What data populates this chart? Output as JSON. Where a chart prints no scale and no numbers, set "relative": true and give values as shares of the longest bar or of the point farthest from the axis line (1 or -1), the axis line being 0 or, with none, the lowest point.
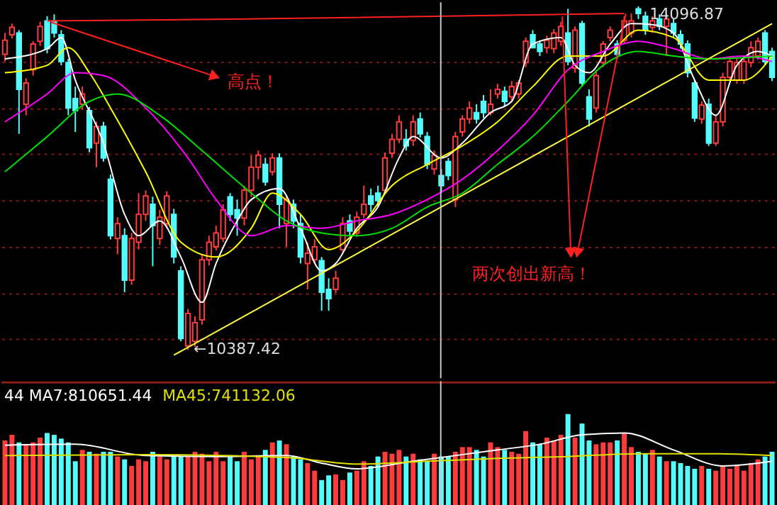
{
  "chart_data": [
    {
      "type": "candlestick",
      "tick_labels": false,
      "grid": "y",
      "ylim": [
        10080,
        14140
      ],
      "yticks": [
        {
          "value": 13500,
          "label": null
        },
        {
          "value": 13000,
          "label": null
        },
        {
          "value": 12500,
          "label": null
        },
        {
          "value": 12000,
          "label": null
        },
        {
          "value": 11500,
          "label": null
        },
        {
          "value": 11000,
          "label": null
        },
        {
          "value": 10500,
          "label": null
        }
      ],
      "colors": [
        "#ff3c3c",
        "#ff3c3c",
        "#54fcfc",
        "#ff3c3c",
        "#ff3c3c",
        "#ff3c3c",
        "#54fcfc",
        "#54fcfc",
        "#54fcfc",
        "#54fcfc",
        "#54fcfc",
        "#ff3c3c",
        "#54fcfc",
        "#ff3c3c",
        "#54fcfc",
        "#54fcfc",
        "#ff3c3c",
        "#54fcfc",
        "#ff3c3c",
        "#ff3c3c",
        "#ff3c3c",
        "#54fcfc",
        "#ff3c3c",
        "#ff3c3c",
        "#54fcfc",
        "#54fcfc",
        "#ff3c3c",
        "#ff3c3c",
        "#ff3c3c",
        "#ff3c3c",
        "#ff3c3c",
        "#ff3c3c",
        "#54fcfc",
        "#54fcfc",
        "#ff3c3c",
        "#ff3c3c",
        "#ff3c3c",
        "#54fcfc",
        "#ff3c3c",
        "#54fcfc",
        "#ff3c3c",
        "#54fcfc",
        "#54fcfc",
        "#ff3c3c",
        "#ff3c3c",
        "#54fcfc",
        "#54fcfc",
        "#ff3c3c",
        "#ff3c3c",
        "#54fcfc",
        "#ff3c3c",
        "#ff3c3c",
        "#54fcfc",
        "#54fcfc",
        "#ff3c3c",
        "#ff3c3c",
        "#ff3c3c",
        "#54fcfc",
        "#ff3c3c",
        "#54fcfc",
        "#54fcfc",
        "#ff3c3c",
        "#54fcfc",
        "#54fcfc",
        "#ff3c3c",
        "#ff3c3c",
        "#ff3c3c",
        "#54fcfc",
        "#54fcfc",
        "#ff3c3c",
        "#ff3c3c",
        "#54fcfc",
        "#ff3c3c",
        "#ff3c3c",
        "#ff3c3c",
        "#54fcfc",
        "#54fcfc",
        "#ff3c3c",
        "#ff3c3c",
        "#ff3c3c",
        "#54fcfc",
        "#ff3c3c",
        "#54fcfc",
        "#54fcfc",
        "#ff3c3c",
        "#ff3c3c",
        "#ff3c3c",
        "#54fcfc",
        "#ff3c3c",
        "#ff3c3c",
        "#54fcfc",
        "#54fcfc",
        "#ff3c3c",
        "#54fcfc",
        "#ff3c3c",
        "#54fcfc",
        "#54fcfc",
        "#54fcfc",
        "#54fcfc",
        "#ff3c3c",
        "#54fcfc",
        "#ff3c3c",
        "#ff3c3c",
        "#ff3c3c",
        "#ff3c3c",
        "#ff3c3c",
        "#ff3c3c",
        "#ff3c3c",
        "#54fcfc",
        "#54fcfc"
      ],
      "categories": [
        null,
        null,
        null,
        null,
        null,
        null,
        null,
        null,
        null,
        null,
        null,
        null,
        null,
        null,
        null,
        null,
        null,
        null,
        null,
        null,
        null,
        null,
        null,
        null,
        null,
        null,
        null,
        null,
        null,
        null,
        null,
        null,
        null,
        null,
        null,
        null,
        null,
        null,
        null,
        null,
        null,
        null,
        null,
        null,
        null,
        null,
        null,
        null,
        null,
        null,
        null,
        null,
        null,
        null,
        null,
        null,
        null,
        null,
        null,
        null,
        null,
        null,
        null,
        null,
        null,
        null,
        null,
        null,
        null,
        null,
        null,
        null,
        null,
        null,
        null,
        null,
        null,
        null,
        null,
        null,
        null,
        null,
        null,
        null,
        null,
        null,
        null,
        null,
        null,
        null,
        null,
        null,
        null,
        null,
        null,
        null,
        null,
        null,
        null,
        null,
        null,
        null,
        null,
        null,
        null,
        null,
        null,
        null,
        null,
        null
      ],
      "ohlc": [
        [
          13580,
          13810,
          13500,
          13730
        ],
        [
          13790,
          13910,
          13750,
          13870
        ],
        [
          13810,
          13840,
          12720,
          13200
        ],
        [
          13040,
          13320,
          12920,
          13270
        ],
        [
          13410,
          13720,
          13350,
          13690
        ],
        [
          13720,
          13930,
          13670,
          13880
        ],
        [
          13940,
          13990,
          13590,
          13640
        ],
        [
          13940,
          14010,
          13760,
          13810
        ],
        [
          13790,
          13840,
          13460,
          13500
        ],
        [
          13490,
          13530,
          12920,
          13000
        ],
        [
          13100,
          13230,
          12740,
          12970
        ],
        [
          13040,
          13230,
          12980,
          13150
        ],
        [
          12970,
          13010,
          12520,
          12570
        ],
        [
          12620,
          12850,
          12360,
          12800
        ],
        [
          12800,
          12850,
          12420,
          12460
        ],
        [
          12230,
          12280,
          11580,
          11620
        ],
        [
          11590,
          11820,
          11420,
          11750
        ],
        [
          11620,
          11700,
          11010,
          11140
        ],
        [
          11140,
          11650,
          11090,
          11590
        ],
        [
          11550,
          12080,
          11470,
          11850
        ],
        [
          11850,
          12110,
          11780,
          12050
        ],
        [
          11960,
          12040,
          11290,
          11730
        ],
        [
          11590,
          11900,
          11520,
          11820
        ],
        [
          11750,
          12100,
          11700,
          12050
        ],
        [
          11850,
          11910,
          11320,
          11390
        ],
        [
          11240,
          11290,
          10480,
          10510
        ],
        [
          10430,
          10830,
          10387.42,
          10780
        ],
        [
          10480,
          10750,
          10420,
          10680
        ],
        [
          10710,
          11420,
          10660,
          11360
        ],
        [
          11360,
          11620,
          11300,
          11550
        ],
        [
          11500,
          11730,
          11460,
          11650
        ],
        [
          11590,
          11960,
          11550,
          11900
        ],
        [
          12040,
          12080,
          11780,
          11850
        ],
        [
          11900,
          12010,
          11620,
          11810
        ],
        [
          11810,
          12160,
          11730,
          12110
        ],
        [
          12110,
          12490,
          12040,
          12360
        ],
        [
          12360,
          12540,
          12230,
          12490
        ],
        [
          12390,
          12460,
          12160,
          12200
        ],
        [
          12310,
          12510,
          12270,
          12460
        ],
        [
          12460,
          12510,
          11700,
          11960
        ],
        [
          11750,
          12050,
          11500,
          12010
        ],
        [
          11960,
          12010,
          11700,
          11780
        ],
        [
          11750,
          11850,
          11320,
          11390
        ],
        [
          11320,
          11550,
          11040,
          11430
        ],
        [
          11360,
          11580,
          11320,
          11500
        ],
        [
          11350,
          11390,
          10810,
          11010
        ],
        [
          11040,
          11160,
          10810,
          10940
        ],
        [
          11040,
          11240,
          11000,
          11160
        ],
        [
          11470,
          11820,
          11420,
          11750
        ],
        [
          11780,
          11850,
          11620,
          11670
        ],
        [
          11650,
          11880,
          11610,
          11820
        ],
        [
          11850,
          12160,
          11810,
          11960
        ],
        [
          12050,
          12130,
          11880,
          11960
        ],
        [
          12080,
          12160,
          11930,
          12000
        ],
        [
          12110,
          12520,
          12070,
          12460
        ],
        [
          12510,
          12720,
          12460,
          12660
        ],
        [
          12660,
          12920,
          12620,
          12850
        ],
        [
          12660,
          12770,
          12540,
          12590
        ],
        [
          12650,
          12920,
          12590,
          12850
        ],
        [
          12880,
          12950,
          12680,
          12720
        ],
        [
          12690,
          12740,
          12340,
          12390
        ],
        [
          12340,
          12540,
          12280,
          12490
        ],
        [
          12270,
          12340,
          12080,
          12160
        ],
        [
          12420,
          12460,
          12220,
          12270
        ],
        [
          12010,
          12740,
          11930,
          12690
        ],
        [
          12740,
          12920,
          12690,
          12880
        ],
        [
          12880,
          13070,
          12830,
          13000
        ],
        [
          12950,
          13040,
          12830,
          12880
        ],
        [
          13070,
          13140,
          12890,
          12950
        ],
        [
          12950,
          13200,
          12920,
          13040
        ],
        [
          13150,
          13260,
          13100,
          13200
        ],
        [
          13180,
          13230,
          13010,
          13070
        ],
        [
          13120,
          13290,
          13070,
          13230
        ],
        [
          13150,
          13300,
          13100,
          13270
        ],
        [
          13490,
          13760,
          13440,
          13720
        ],
        [
          13790,
          13840,
          13650,
          13650
        ],
        [
          13690,
          13730,
          13560,
          13610
        ],
        [
          13650,
          13780,
          13590,
          13730
        ],
        [
          13640,
          13850,
          13590,
          13810
        ],
        [
          13720,
          13930,
          13670,
          13880
        ],
        [
          13810,
          14070,
          13460,
          13500
        ],
        [
          13430,
          13880,
          13380,
          13840
        ],
        [
          13910,
          13940,
          13230,
          13270
        ],
        [
          13120,
          13200,
          12800,
          12880
        ],
        [
          13000,
          13410,
          12950,
          13350
        ],
        [
          13490,
          13720,
          13440,
          13690
        ],
        [
          13760,
          13880,
          13720,
          13840
        ],
        [
          13690,
          13730,
          13530,
          13580
        ],
        [
          13730,
          13990,
          13690,
          13940
        ],
        [
          13810,
          14020,
          13760,
          13940
        ],
        [
          14070,
          14096.87,
          13960,
          14020
        ],
        [
          13990,
          14040,
          13790,
          13840
        ],
        [
          13870,
          13990,
          13810,
          13940
        ],
        [
          13960,
          14010,
          13840,
          13880
        ],
        [
          13880,
          14010,
          13560,
          13960
        ],
        [
          13910,
          13960,
          13760,
          13810
        ],
        [
          13790,
          13840,
          13640,
          13690
        ],
        [
          13690,
          13730,
          13330,
          13380
        ],
        [
          13270,
          13300,
          12850,
          12890
        ],
        [
          12880,
          13070,
          12830,
          13030
        ],
        [
          13040,
          13100,
          12590,
          12620
        ],
        [
          12620,
          12920,
          12590,
          12850
        ],
        [
          12850,
          13380,
          12800,
          13330
        ],
        [
          13330,
          13560,
          13290,
          13500
        ],
        [
          13300,
          13530,
          13260,
          13490
        ],
        [
          13300,
          13560,
          13260,
          13500
        ],
        [
          13490,
          13720,
          13440,
          13650
        ],
        [
          13560,
          13760,
          13520,
          13720
        ],
        [
          13810,
          13840,
          13460,
          13500
        ],
        [
          13610,
          13650,
          13290,
          13330
        ]
      ],
      "series": [
        {
          "type": "line",
          "color": "#ffffff",
          "values": [
            13530,
            null,
            null,
            null,
            null,
            null,
            13640,
            null,
            13760,
            null,
            13300,
            null,
            null,
            null,
            12620,
            null,
            null,
            11850,
            null,
            11620,
            null,
            null,
            11780,
            null,
            null,
            11390,
            null,
            null,
            10900,
            null,
            11320,
            null,
            null,
            11780,
            null,
            12010,
            null,
            null,
            null,
            12130,
            null,
            null,
            11700,
            null,
            null,
            11240,
            null,
            11320,
            null,
            null,
            11700,
            null,
            null,
            11930,
            null,
            null,
            12460,
            null,
            12690,
            null,
            null,
            null,
            12460,
            null,
            null,
            12620,
            null,
            null,
            null,
            12950,
            null,
            null,
            13070,
            null,
            null,
            13690,
            null,
            null,
            null,
            13760,
            null,
            13460,
            null,
            13380,
            null,
            null,
            13690,
            null,
            null,
            13910,
            null,
            null,
            13900,
            null,
            null,
            13810,
            null,
            null,
            13300,
            null,
            null,
            12920,
            null,
            null,
            13460,
            null,
            null,
            13610,
            null,
            13560
          ]
        },
        {
          "type": "line",
          "color": "#ffff00",
          "values": [
            13380,
            null,
            null,
            null,
            null,
            null,
            13460,
            null,
            null,
            13650,
            null,
            null,
            13380,
            null,
            null,
            13000,
            null,
            null,
            null,
            null,
            12310,
            null,
            null,
            null,
            null,
            11550,
            null,
            null,
            null,
            null,
            11390,
            null,
            null,
            null,
            null,
            11700,
            null,
            null,
            12080,
            null,
            null,
            null,
            11850,
            null,
            null,
            null,
            11470,
            null,
            null,
            null,
            11670,
            null,
            null,
            null,
            null,
            12160,
            null,
            null,
            null,
            null,
            12390,
            null,
            null,
            null,
            null,
            12590,
            null,
            null,
            null,
            null,
            12850,
            null,
            null,
            null,
            null,
            13230,
            null,
            null,
            null,
            null,
            13560,
            null,
            null,
            null,
            null,
            13560,
            null,
            null,
            null,
            null,
            13840,
            null,
            null,
            null,
            null,
            13760,
            null,
            null,
            null,
            null,
            13300,
            null,
            null,
            null,
            null,
            13300,
            null,
            null,
            null,
            13560
          ]
        },
        {
          "type": "line",
          "color": "#ff00ff",
          "values": [
            12850,
            null,
            null,
            null,
            null,
            null,
            13150,
            null,
            null,
            null,
            13380,
            null,
            null,
            null,
            13350,
            null,
            null,
            null,
            null,
            null,
            13000,
            null,
            null,
            null,
            null,
            null,
            12460,
            null,
            null,
            null,
            12010,
            null,
            null,
            null,
            null,
            11620,
            null,
            null,
            null,
            null,
            11730,
            null,
            null,
            null,
            null,
            11700,
            null,
            null,
            null,
            null,
            11780,
            null,
            null,
            null,
            null,
            11850,
            null,
            null,
            null,
            null,
            12010,
            null,
            null,
            null,
            null,
            12230,
            null,
            null,
            null,
            null,
            12540,
            null,
            null,
            null,
            null,
            12920,
            null,
            null,
            null,
            null,
            13410,
            null,
            null,
            null,
            null,
            13610,
            null,
            null,
            null,
            null,
            13720,
            null,
            null,
            null,
            null,
            13640,
            null,
            null,
            null,
            null,
            13530,
            null,
            null,
            null,
            null,
            13560,
            null,
            null,
            null,
            13500
          ]
        },
        {
          "type": "line",
          "color": "#00e000",
          "values": [
            12310,
            null,
            null,
            null,
            null,
            null,
            12690,
            null,
            null,
            null,
            null,
            null,
            13070,
            null,
            null,
            null,
            13150,
            null,
            null,
            null,
            null,
            null,
            12920,
            null,
            null,
            null,
            null,
            null,
            12540,
            null,
            null,
            null,
            null,
            null,
            null,
            12080,
            null,
            null,
            null,
            null,
            11780,
            null,
            null,
            null,
            null,
            11650,
            null,
            null,
            null,
            null,
            11620,
            null,
            null,
            null,
            null,
            11700,
            null,
            null,
            null,
            null,
            11930,
            null,
            null,
            null,
            null,
            12080,
            null,
            null,
            null,
            null,
            12390,
            null,
            null,
            null,
            null,
            12690,
            null,
            null,
            null,
            null,
            13070,
            null,
            null,
            null,
            null,
            13460,
            null,
            null,
            null,
            null,
            13610,
            null,
            null,
            null,
            null,
            13560,
            null,
            null,
            null,
            null,
            13530,
            null,
            null,
            null,
            null,
            null,
            null,
            null,
            null,
            13560
          ]
        },
        {
          "type": "line",
          "color": "#ff2020",
          "values": [
            null,
            null,
            null,
            null,
            null,
            null,
            13940,
            null,
            null,
            null,
            null,
            null,
            null,
            null,
            null,
            null,
            null,
            null,
            null,
            null,
            null,
            null,
            null,
            null,
            null,
            null,
            null,
            null,
            null,
            null,
            null,
            null,
            null,
            null,
            13960,
            null,
            null,
            null,
            null,
            null,
            null,
            null,
            null,
            null,
            null,
            null,
            null,
            null,
            null,
            null,
            null,
            null,
            null,
            null,
            null,
            null,
            null,
            null,
            null,
            null,
            null,
            null,
            null,
            null,
            null,
            null,
            null,
            null,
            null,
            null,
            null,
            null,
            null,
            null,
            null,
            null,
            null,
            null,
            null,
            null,
            null,
            null,
            null,
            null,
            null,
            null,
            null,
            null,
            14020,
            null,
            null,
            null,
            null,
            null,
            null,
            null,
            null,
            null,
            null,
            null,
            null,
            null,
            null,
            null,
            null,
            null,
            null,
            null,
            null,
            null
          ]
        },
        {
          "type": "line",
          "color": "#ffff40",
          "values": [
            null,
            null,
            null,
            null,
            null,
            null,
            null,
            null,
            null,
            null,
            null,
            null,
            null,
            null,
            null,
            null,
            null,
            null,
            null,
            null,
            null,
            null,
            null,
            null,
            10330,
            null,
            null,
            null,
            null,
            null,
            null,
            null,
            null,
            null,
            null,
            null,
            null,
            null,
            null,
            null,
            null,
            null,
            null,
            null,
            null,
            null,
            null,
            null,
            null,
            null,
            null,
            null,
            null,
            null,
            null,
            null,
            null,
            null,
            null,
            null,
            null,
            null,
            null,
            null,
            null,
            null,
            null,
            null,
            null,
            null,
            null,
            null,
            null,
            null,
            null,
            null,
            null,
            null,
            null,
            null,
            null,
            null,
            null,
            null,
            null,
            null,
            null,
            null,
            null,
            null,
            null,
            null,
            null,
            null,
            null,
            null,
            null,
            null,
            null,
            null,
            null,
            null,
            null,
            null,
            null,
            null,
            null,
            null,
            null,
            13910
          ]
        }
      ],
      "annotations": [
        "高点！",
        "两次创出新高！",
        "←10387.42",
        "14096.87"
      ]
    },
    {
      "type": "bar",
      "relative": true,
      "tick_labels": false,
      "categories": [
        null,
        null,
        null,
        null,
        null,
        null,
        null,
        null,
        null,
        null,
        null,
        null,
        null,
        null,
        null,
        null,
        null,
        null,
        null,
        null,
        null,
        null,
        null,
        null,
        null,
        null,
        null,
        null,
        null,
        null,
        null,
        null,
        null,
        null,
        null,
        null,
        null,
        null,
        null,
        null,
        null,
        null,
        null,
        null,
        null,
        null,
        null,
        null,
        null,
        null,
        null,
        null,
        null,
        null,
        null,
        null,
        null,
        null,
        null,
        null,
        null,
        null,
        null,
        null,
        null,
        null,
        null,
        null,
        null,
        null,
        null,
        null,
        null,
        null,
        null,
        null,
        null,
        null,
        null,
        null,
        null,
        null,
        null,
        null,
        null,
        null,
        null,
        null,
        null,
        null,
        null,
        null,
        null,
        null,
        null,
        null,
        null,
        null,
        null,
        null,
        null,
        null,
        null,
        null,
        null,
        null,
        null,
        null,
        null,
        null
      ],
      "series": [
        {
          "type": "bar",
          "values": [
            0.72,
            0.78,
            0.7,
            0.68,
            0.7,
            0.75,
            0.8,
            0.78,
            0.74,
            0.7,
            0.5,
            0.62,
            0.6,
            0.58,
            0.6,
            0.6,
            0.55,
            0.52,
            0.45,
            0.52,
            0.5,
            0.6,
            0.55,
            0.52,
            0.55,
            0.55,
            0.55,
            0.6,
            0.58,
            0.5,
            0.6,
            0.5,
            0.55,
            0.5,
            0.6,
            0.52,
            0.55,
            0.62,
            0.7,
            0.72,
            0.68,
            0.55,
            0.52,
            0.48,
            0.4,
            0.3,
            0.35,
            0.36,
            0.3,
            0.38,
            0.4,
            0.5,
            0.45,
            0.55,
            0.6,
            0.58,
            0.62,
            0.55,
            0.58,
            0.52,
            0.5,
            0.58,
            0.55,
            0.55,
            0.6,
            0.65,
            0.65,
            0.62,
            0.55,
            0.7,
            0.65,
            0.62,
            0.6,
            0.58,
            0.82,
            0.7,
            0.68,
            0.75,
            0.72,
            0.78,
            1,
            0.75,
            0.9,
            0.72,
            0.68,
            0.7,
            0.7,
            0.72,
            0.8,
            0.65,
            0.6,
            0.58,
            0.62,
            0.55,
            0.5,
            0.5,
            0.48,
            0.45,
            0.42,
            0.45,
            0.42,
            0.4,
            0.45,
            0.42,
            0.45,
            0.4,
            0.48,
            0.52,
            0.55,
            0.6
          ],
          "colors": [
            "#ff3c3c",
            "#ff3c3c",
            "#54fcfc",
            "#ff3c3c",
            "#ff3c3c",
            "#ff3c3c",
            "#54fcfc",
            "#54fcfc",
            "#54fcfc",
            "#54fcfc",
            "#54fcfc",
            "#ff3c3c",
            "#54fcfc",
            "#ff3c3c",
            "#54fcfc",
            "#54fcfc",
            "#ff3c3c",
            "#54fcfc",
            "#ff3c3c",
            "#ff3c3c",
            "#ff3c3c",
            "#54fcfc",
            "#ff3c3c",
            "#ff3c3c",
            "#54fcfc",
            "#54fcfc",
            "#ff3c3c",
            "#ff3c3c",
            "#ff3c3c",
            "#ff3c3c",
            "#ff3c3c",
            "#ff3c3c",
            "#54fcfc",
            "#54fcfc",
            "#ff3c3c",
            "#ff3c3c",
            "#ff3c3c",
            "#54fcfc",
            "#ff3c3c",
            "#54fcfc",
            "#ff3c3c",
            "#54fcfc",
            "#54fcfc",
            "#ff3c3c",
            "#ff3c3c",
            "#54fcfc",
            "#54fcfc",
            "#ff3c3c",
            "#ff3c3c",
            "#54fcfc",
            "#ff3c3c",
            "#ff3c3c",
            "#54fcfc",
            "#54fcfc",
            "#ff3c3c",
            "#ff3c3c",
            "#ff3c3c",
            "#54fcfc",
            "#ff3c3c",
            "#54fcfc",
            "#54fcfc",
            "#ff3c3c",
            "#54fcfc",
            "#54fcfc",
            "#ff3c3c",
            "#ff3c3c",
            "#ff3c3c",
            "#54fcfc",
            "#54fcfc",
            "#ff3c3c",
            "#ff3c3c",
            "#54fcfc",
            "#ff3c3c",
            "#ff3c3c",
            "#ff3c3c",
            "#54fcfc",
            "#54fcfc",
            "#ff3c3c",
            "#ff3c3c",
            "#ff3c3c",
            "#54fcfc",
            "#ff3c3c",
            "#54fcfc",
            "#54fcfc",
            "#ff3c3c",
            "#ff3c3c",
            "#ff3c3c",
            "#54fcfc",
            "#ff3c3c",
            "#ff3c3c",
            "#54fcfc",
            "#54fcfc",
            "#ff3c3c",
            "#54fcfc",
            "#ff3c3c",
            "#54fcfc",
            "#54fcfc",
            "#54fcfc",
            "#54fcfc",
            "#ff3c3c",
            "#54fcfc",
            "#ff3c3c",
            "#ff3c3c",
            "#ff3c3c",
            "#ff3c3c",
            "#ff3c3c",
            "#ff3c3c",
            "#ff3c3c",
            "#54fcfc",
            "#54fcfc"
          ]
        },
        {
          "type": "line",
          "color": "#ffffff",
          "values": [
            0.67,
            null,
            null,
            null,
            null,
            null,
            null,
            null,
            null,
            null,
            0.68,
            null,
            null,
            null,
            null,
            null,
            null,
            null,
            null,
            null,
            0.56,
            null,
            null,
            null,
            null,
            null,
            null,
            null,
            null,
            null,
            0.55,
            null,
            null,
            null,
            null,
            null,
            null,
            null,
            null,
            null,
            0.56,
            null,
            null,
            null,
            null,
            0.48,
            null,
            null,
            null,
            null,
            0.42,
            null,
            null,
            null,
            null,
            null,
            null,
            null,
            0.5,
            null,
            null,
            null,
            null,
            0.55,
            null,
            null,
            null,
            null,
            null,
            null,
            0.62,
            null,
            null,
            null,
            null,
            null,
            0.68,
            null,
            null,
            null,
            null,
            null,
            0.78,
            null,
            null,
            null,
            null,
            null,
            0.8,
            null,
            null,
            null,
            null,
            null,
            null,
            0.62,
            null,
            null,
            null,
            null,
            null,
            null,
            0.45,
            null,
            null,
            null,
            null,
            null,
            null,
            0.5
          ]
        },
        {
          "type": "line",
          "color": "#e0e000",
          "values": [
            0.56,
            null,
            null,
            null,
            null,
            null,
            null,
            null,
            null,
            null,
            null,
            null,
            null,
            null,
            null,
            null,
            null,
            null,
            null,
            null,
            0.57,
            null,
            null,
            null,
            null,
            null,
            null,
            null,
            null,
            null,
            null,
            null,
            null,
            null,
            null,
            null,
            null,
            null,
            null,
            null,
            0.54,
            null,
            null,
            null,
            null,
            null,
            null,
            null,
            null,
            null,
            0.47,
            null,
            null,
            null,
            null,
            null,
            null,
            null,
            null,
            null,
            0.5,
            null,
            null,
            null,
            null,
            null,
            null,
            null,
            null,
            null,
            0.53,
            null,
            null,
            null,
            null,
            null,
            null,
            null,
            null,
            null,
            0.55,
            null,
            null,
            null,
            null,
            null,
            null,
            null,
            null,
            null,
            0.58,
            null,
            null,
            null,
            null,
            null,
            null,
            null,
            null,
            null,
            0.58,
            null,
            null,
            null,
            null,
            null,
            null,
            null,
            null,
            0.56
          ]
        }
      ],
      "annotations": [
        "44 MA7:810651.44",
        "MA45:741132.06"
      ]
    }
  ]
}
